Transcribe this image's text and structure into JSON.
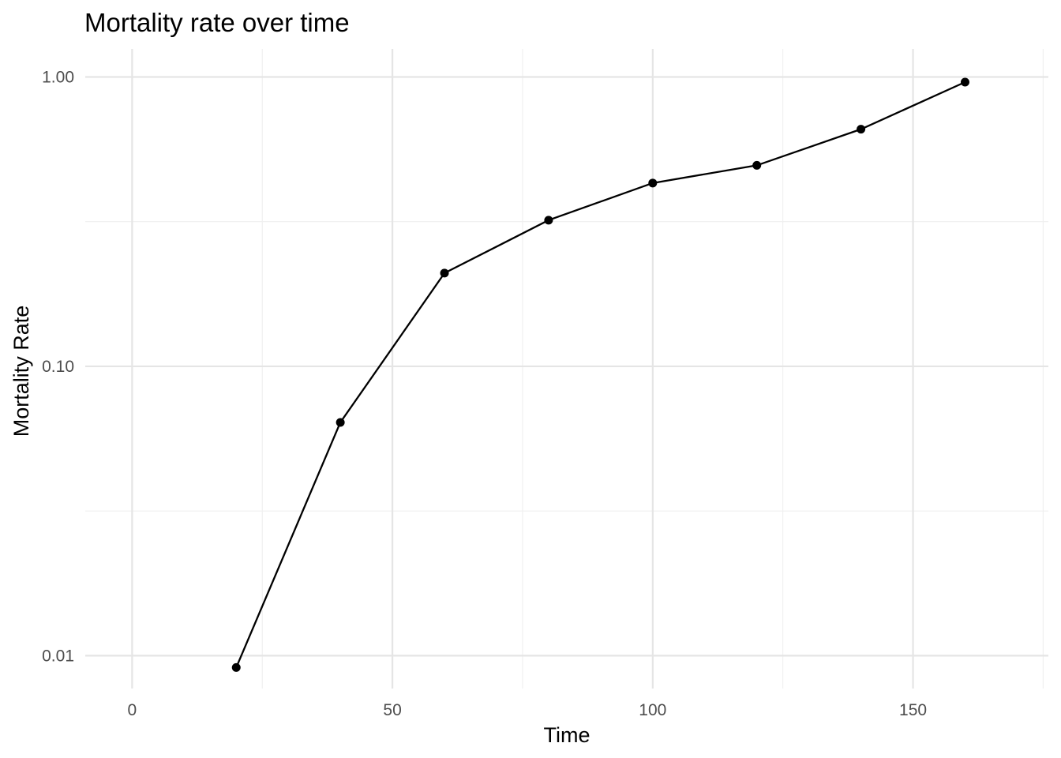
{
  "chart_data": {
    "type": "line",
    "title": "Mortality rate over time",
    "xlabel": "Time",
    "ylabel": "Mortality Rate",
    "x_scale": "linear",
    "y_scale": "log10",
    "xlim": [
      -9,
      176
    ],
    "ylim": [
      0.0077,
      1.25
    ],
    "x_ticks": [
      0,
      50,
      100,
      150
    ],
    "x_tick_labels": [
      "0",
      "50",
      "100",
      "150"
    ],
    "y_ticks": [
      0.01,
      0.1,
      1
    ],
    "y_tick_labels": [
      "0.01",
      "0.10",
      "1.00"
    ],
    "grid": true,
    "legend": "none",
    "series": [
      {
        "x": [
          20,
          40,
          60,
          80,
          100,
          120,
          140,
          160
        ],
        "y": [
          0.0091,
          0.064,
          0.21,
          0.32,
          0.43,
          0.495,
          0.66,
          0.96
        ],
        "color": "#000000"
      }
    ]
  }
}
